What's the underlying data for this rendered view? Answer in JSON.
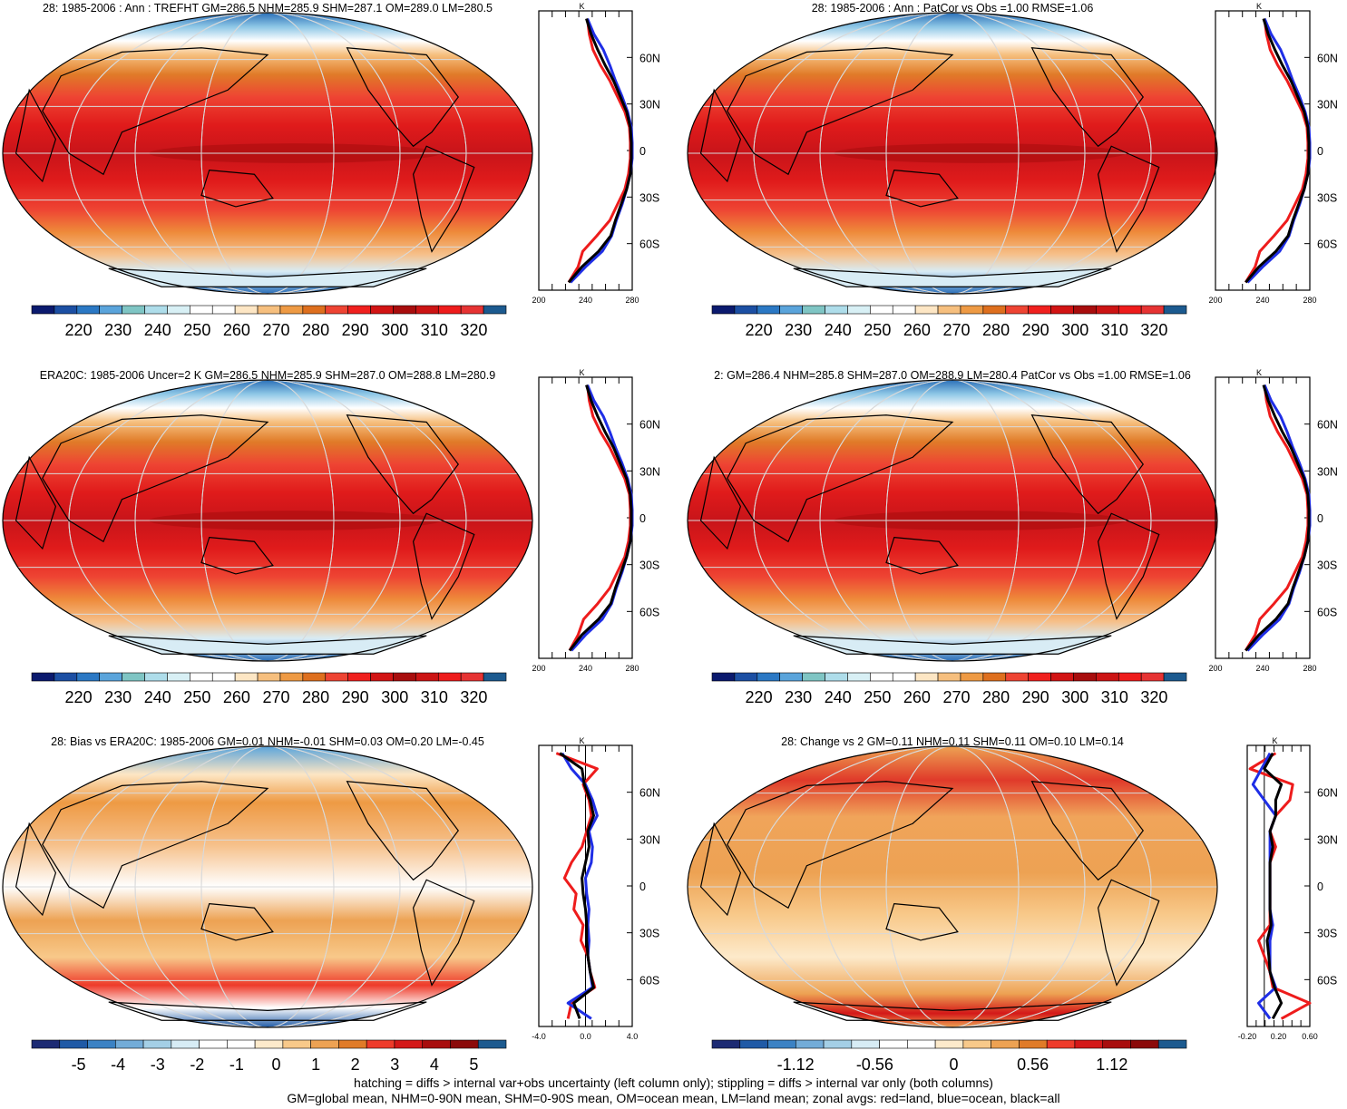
{
  "footnotes": {
    "line1": "hatching = diffs > internal var+obs uncertainty (left column only); stippling = diffs > internal var only (both columns)",
    "line2": "GM=global mean, NHM=0-90N mean, SHM=0-90S mean, OM=ocean mean, LM=land mean; zonal avgs: red=land, blue=ocean, black=all"
  },
  "colors": {
    "land": "#ee1c1c",
    "ocean": "#1f2ee6",
    "all": "#000000",
    "coastline": "#000000",
    "graticule": "#d9d9d9"
  },
  "lat_labels": [
    "60N",
    "30N",
    "0",
    "30S",
    "60S"
  ],
  "palette_abs": [
    "#0b1a6e",
    "#1c4fa3",
    "#2b78c4",
    "#5aa4db",
    "#7fc5c4",
    "#aeddea",
    "#d8f0f5",
    "#ffffff",
    "#ffffff",
    "#fde6c4",
    "#f6bf7e",
    "#ee9a44",
    "#de6f1e",
    "#ee4433",
    "#f0201e",
    "#d21414",
    "#a80d0d",
    "#cc1414",
    "#ee1c1c",
    "#e63333",
    "#1c5a8f"
  ],
  "palette_diff": [
    "#1c2a73",
    "#1f5aa6",
    "#3b82c4",
    "#73acd8",
    "#a4cfe6",
    "#d7ecf5",
    "#ffffff",
    "#ffffff",
    "#fdeacb",
    "#f8c98a",
    "#eda253",
    "#e07b28",
    "#ee3b2a",
    "#d41818",
    "#a80d0d",
    "#8b0a0a",
    "#1c5a8f"
  ],
  "chart_data": [
    {
      "type": "heatmap",
      "title": "28: 1985-2006 : Ann : TREFHT GM=286.5 NHM=285.9 SHM=287.1 OM=289.0 LM=280.5",
      "field": "absolute",
      "colorbar_labels": [
        "220",
        "230",
        "240",
        "250",
        "260",
        "270",
        "280",
        "290",
        "300",
        "310",
        "320"
      ],
      "zonal_profile": {
        "xlim": [
          200,
          300
        ],
        "xticks": [
          "200",
          "240",
          "280"
        ],
        "unit": "K",
        "lat": [
          -85,
          -75,
          -65,
          -55,
          -45,
          -35,
          -25,
          -15,
          -5,
          5,
          15,
          25,
          35,
          45,
          55,
          65,
          75,
          85
        ],
        "land": [
          232,
          242,
          247,
          262,
          276,
          284,
          292,
          296,
          298,
          298,
          297,
          292,
          284,
          276,
          266,
          258,
          254,
          252
        ],
        "ocean": [
          234,
          250,
          268,
          278,
          283,
          289,
          294,
          298,
          300,
          300,
          299,
          295,
          289,
          282,
          276,
          269,
          259,
          252
        ],
        "all": [
          232,
          246,
          264,
          277,
          282,
          288,
          294,
          298,
          299,
          299,
          298,
          294,
          287,
          280,
          271,
          263,
          256,
          251
        ]
      }
    },
    {
      "type": "heatmap",
      "title": "28: 1985-2006 : Ann : PatCor vs Obs =1.00 RMSE=1.06",
      "field": "absolute",
      "colorbar_labels": [
        "220",
        "230",
        "240",
        "250",
        "260",
        "270",
        "280",
        "290",
        "300",
        "310",
        "320"
      ],
      "zonal_profile": {
        "xlim": [
          200,
          300
        ],
        "xticks": [
          "200",
          "240",
          "280"
        ],
        "unit": "K",
        "lat": [
          -85,
          -75,
          -65,
          -55,
          -45,
          -35,
          -25,
          -15,
          -5,
          5,
          15,
          25,
          35,
          45,
          55,
          65,
          75,
          85
        ],
        "land": [
          232,
          242,
          247,
          262,
          276,
          284,
          292,
          296,
          298,
          298,
          297,
          292,
          284,
          276,
          266,
          258,
          254,
          252
        ],
        "ocean": [
          234,
          250,
          268,
          278,
          283,
          289,
          294,
          298,
          300,
          300,
          299,
          295,
          289,
          282,
          276,
          269,
          259,
          252
        ],
        "all": [
          232,
          246,
          264,
          277,
          282,
          288,
          294,
          298,
          299,
          299,
          298,
          294,
          287,
          280,
          271,
          263,
          256,
          251
        ]
      }
    },
    {
      "type": "heatmap",
      "title": "ERA20C: 1985-2006 Uncer=2 K GM=286.5 NHM=285.9 SHM=287.0 OM=288.8 LM=280.9",
      "field": "absolute",
      "colorbar_labels": [
        "220",
        "230",
        "240",
        "250",
        "260",
        "270",
        "280",
        "290",
        "300",
        "310",
        "320"
      ],
      "zonal_profile": {
        "xlim": [
          200,
          300
        ],
        "xticks": [
          "200",
          "240",
          "280"
        ],
        "unit": "K",
        "lat": [
          -85,
          -75,
          -65,
          -55,
          -45,
          -35,
          -25,
          -15,
          -5,
          5,
          15,
          25,
          35,
          45,
          55,
          65,
          75,
          85
        ],
        "land": [
          233,
          242,
          248,
          263,
          276,
          284,
          292,
          296,
          298,
          298,
          297,
          292,
          284,
          276,
          266,
          258,
          254,
          252
        ],
        "ocean": [
          235,
          250,
          268,
          278,
          283,
          289,
          294,
          298,
          300,
          300,
          299,
          295,
          289,
          282,
          276,
          269,
          259,
          252
        ],
        "all": [
          233,
          246,
          264,
          277,
          282,
          288,
          294,
          298,
          299,
          299,
          298,
          294,
          287,
          280,
          271,
          263,
          256,
          251
        ]
      }
    },
    {
      "type": "heatmap",
      "title": "2: GM=286.4 NHM=285.8 SHM=287.0 OM=288.9 LM=280.4 PatCor vs Obs =1.00 RMSE=1.06",
      "field": "absolute",
      "colorbar_labels": [
        "220",
        "230",
        "240",
        "250",
        "260",
        "270",
        "280",
        "290",
        "300",
        "310",
        "320"
      ],
      "zonal_profile": {
        "xlim": [
          200,
          300
        ],
        "xticks": [
          "200",
          "240",
          "280"
        ],
        "unit": "K",
        "lat": [
          -85,
          -75,
          -65,
          -55,
          -45,
          -35,
          -25,
          -15,
          -5,
          5,
          15,
          25,
          35,
          45,
          55,
          65,
          75,
          85
        ],
        "land": [
          232,
          242,
          247,
          262,
          276,
          284,
          292,
          296,
          298,
          298,
          297,
          292,
          284,
          276,
          266,
          258,
          254,
          252
        ],
        "ocean": [
          234,
          250,
          268,
          278,
          283,
          289,
          294,
          298,
          300,
          300,
          299,
          295,
          289,
          282,
          276,
          269,
          259,
          252
        ],
        "all": [
          232,
          246,
          264,
          277,
          282,
          288,
          294,
          298,
          299,
          299,
          298,
          294,
          287,
          280,
          271,
          263,
          256,
          251
        ]
      }
    },
    {
      "type": "heatmap",
      "title": "28: Bias vs ERA20C: 1985-2006 GM=0.01 NHM=-0.01 SHM=0.03 OM=0.20 LM=-0.45",
      "field": "difference",
      "colorbar_labels": [
        "-5",
        "-4",
        "-3",
        "-2",
        "-1",
        "0",
        "1",
        "2",
        "3",
        "4",
        "5"
      ],
      "zonal_profile": {
        "xlim": [
          -4.0,
          4.0
        ],
        "xticks": [
          "-4.0",
          "0.0",
          "4.0"
        ],
        "unit": "K",
        "lat": [
          -85,
          -75,
          -65,
          -55,
          -45,
          -35,
          -25,
          -15,
          -5,
          5,
          15,
          25,
          35,
          45,
          55,
          65,
          75,
          85
        ],
        "land": [
          -1.5,
          -1.2,
          0.8,
          0.4,
          0.2,
          -0.4,
          -0.2,
          -1.0,
          -0.8,
          -1.8,
          -1.2,
          -0.3,
          0.1,
          0.5,
          0.3,
          -0.2,
          1.0,
          -2.5
        ],
        "ocean": [
          0.5,
          -1.5,
          0.6,
          0.4,
          0.2,
          0.3,
          0.2,
          0.3,
          0.1,
          0.0,
          0.5,
          0.6,
          0.3,
          1.0,
          0.6,
          0.0,
          -1.2,
          -2.0
        ],
        "all": [
          -0.5,
          -1.0,
          0.7,
          0.4,
          0.2,
          0.1,
          0.1,
          0.0,
          -0.2,
          -0.3,
          0.0,
          0.3,
          0.2,
          0.7,
          0.4,
          -0.1,
          -0.3,
          -2.2
        ]
      }
    },
    {
      "type": "heatmap",
      "title": "28: Change vs 2 GM=0.11 NHM=0.11 SHM=0.11 OM=0.10 LM=0.14",
      "field": "difference",
      "colorbar_labels": [
        "-1.12",
        "-0.56",
        "0",
        "0.56",
        "1.12"
      ],
      "zonal_profile": {
        "xlim": [
          -0.3,
          0.8
        ],
        "xticks": [
          "-0.20",
          "0.20",
          "0.60"
        ],
        "unit": "K",
        "lat": [
          -85,
          -75,
          -65,
          -55,
          -45,
          -35,
          -25,
          -15,
          -5,
          5,
          15,
          25,
          35,
          45,
          55,
          65,
          75,
          85
        ],
        "land": [
          0.3,
          0.8,
          0.15,
          0.1,
          0.0,
          -0.1,
          0.1,
          0.1,
          0.1,
          0.1,
          0.1,
          0.2,
          0.1,
          0.2,
          0.45,
          0.5,
          -0.25,
          0.2
        ],
        "ocean": [
          0.1,
          -0.1,
          0.2,
          0.1,
          0.1,
          0.1,
          0.15,
          0.1,
          0.1,
          0.1,
          0.1,
          0.1,
          0.1,
          0.2,
          0.0,
          -0.2,
          -0.05,
          0.1
        ],
        "all": [
          0.15,
          0.3,
          0.18,
          0.1,
          0.08,
          0.05,
          0.12,
          0.1,
          0.1,
          0.1,
          0.1,
          0.15,
          0.1,
          0.2,
          0.2,
          0.3,
          0.0,
          0.15
        ]
      }
    }
  ]
}
